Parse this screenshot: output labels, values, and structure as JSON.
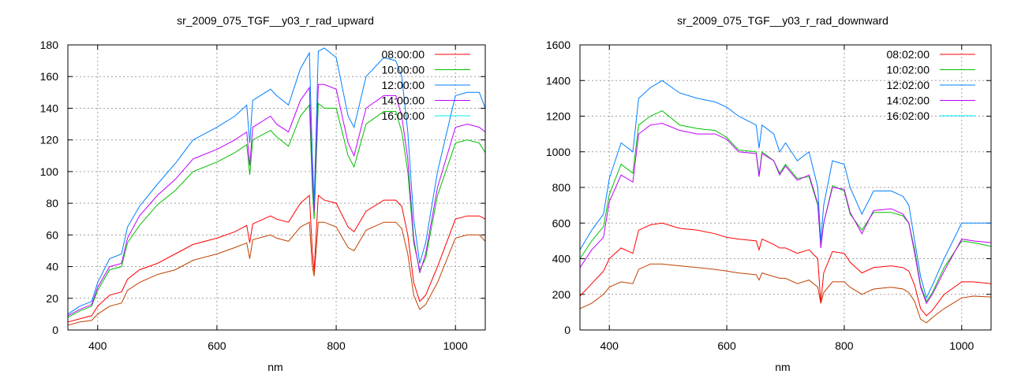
{
  "chart_data": [
    {
      "type": "line",
      "title": "sr_2009_075_TGF__y03_r_rad_upward",
      "xlabel": "nm",
      "ylabel": "",
      "xlim": [
        350,
        1050
      ],
      "ylim": [
        0,
        180
      ],
      "xticks": [
        400,
        600,
        800,
        1000
      ],
      "yticks": [
        0,
        20,
        40,
        60,
        80,
        100,
        120,
        140,
        160,
        180
      ],
      "grid": true,
      "legend_position": "top-right",
      "x": [
        350,
        370,
        390,
        400,
        420,
        440,
        450,
        470,
        500,
        530,
        560,
        600,
        630,
        650,
        655,
        660,
        690,
        700,
        720,
        740,
        755,
        760,
        763,
        770,
        780,
        800,
        820,
        830,
        850,
        880,
        900,
        910,
        920,
        930,
        940,
        950,
        970,
        1000,
        1020,
        1040,
        1050
      ],
      "series": [
        {
          "name": "08:00:00",
          "color": "#ff0000",
          "values": [
            5,
            7,
            9,
            15,
            22,
            24,
            32,
            38,
            42,
            48,
            54,
            58,
            62,
            66,
            55,
            67,
            72,
            70,
            68,
            80,
            85,
            50,
            37,
            85,
            82,
            80,
            65,
            62,
            75,
            82,
            82,
            78,
            60,
            30,
            18,
            22,
            40,
            70,
            72,
            72,
            70
          ]
        },
        {
          "name": "10:00:00",
          "color": "#00c000",
          "values": [
            8,
            12,
            15,
            25,
            38,
            40,
            55,
            66,
            79,
            88,
            100,
            106,
            112,
            117,
            98,
            120,
            126,
            122,
            116,
            135,
            142,
            90,
            70,
            143,
            140,
            140,
            110,
            103,
            130,
            138,
            138,
            125,
            100,
            55,
            38,
            45,
            85,
            118,
            120,
            118,
            112
          ]
        },
        {
          "name": "12:00:00",
          "color": "#0080ff",
          "values": [
            10,
            15,
            18,
            30,
            45,
            48,
            65,
            78,
            92,
            105,
            120,
            128,
            135,
            142,
            118,
            145,
            152,
            148,
            142,
            165,
            175,
            110,
            80,
            176,
            178,
            172,
            135,
            128,
            160,
            172,
            170,
            160,
            125,
            70,
            42,
            55,
            100,
            148,
            150,
            150,
            140
          ]
        },
        {
          "name": "14:00:00",
          "color": "#c000ff",
          "values": [
            9,
            13,
            16,
            27,
            40,
            42,
            58,
            72,
            85,
            95,
            108,
            114,
            120,
            125,
            104,
            128,
            135,
            130,
            125,
            145,
            153,
            98,
            75,
            155,
            155,
            152,
            118,
            110,
            140,
            148,
            148,
            135,
            108,
            58,
            36,
            48,
            90,
            128,
            130,
            128,
            125
          ]
        },
        {
          "name": "16:00:00",
          "color": "#00eeee",
          "plot_color": "#c04000",
          "values": [
            3,
            5,
            6,
            10,
            15,
            17,
            25,
            30,
            35,
            38,
            44,
            48,
            52,
            55,
            45,
            57,
            60,
            58,
            56,
            65,
            68,
            40,
            34,
            68,
            68,
            65,
            52,
            50,
            63,
            68,
            68,
            64,
            48,
            22,
            13,
            16,
            30,
            58,
            60,
            60,
            56
          ]
        }
      ]
    },
    {
      "type": "line",
      "title": "sr_2009_075_TGF__y03_r_rad_downward",
      "xlabel": "nm",
      "ylabel": "",
      "xlim": [
        350,
        1050
      ],
      "ylim": [
        0,
        1600
      ],
      "xticks": [
        400,
        600,
        800,
        1000
      ],
      "yticks": [
        0,
        200,
        400,
        600,
        800,
        1000,
        1200,
        1400,
        1600
      ],
      "grid": true,
      "legend_position": "top-right",
      "x": [
        350,
        370,
        390,
        400,
        420,
        440,
        450,
        470,
        490,
        520,
        550,
        580,
        600,
        620,
        650,
        655,
        660,
        680,
        690,
        700,
        720,
        740,
        755,
        760,
        765,
        780,
        800,
        810,
        830,
        850,
        880,
        900,
        910,
        920,
        930,
        940,
        950,
        970,
        1000,
        1020,
        1050
      ],
      "series": [
        {
          "name": "08:02:00",
          "color": "#ff0000",
          "values": [
            190,
            260,
            330,
            400,
            460,
            430,
            560,
            590,
            600,
            570,
            560,
            540,
            520,
            510,
            500,
            450,
            510,
            480,
            460,
            460,
            430,
            450,
            400,
            150,
            320,
            440,
            430,
            380,
            320,
            350,
            360,
            350,
            330,
            250,
            120,
            80,
            110,
            200,
            270,
            270,
            260
          ]
        },
        {
          "name": "10:02:00",
          "color": "#00c000",
          "values": [
            400,
            500,
            580,
            760,
            930,
            880,
            1150,
            1200,
            1230,
            1150,
            1130,
            1120,
            1080,
            1010,
            1000,
            870,
            1000,
            950,
            880,
            930,
            850,
            860,
            700,
            470,
            600,
            810,
            780,
            650,
            560,
            660,
            660,
            640,
            600,
            450,
            250,
            160,
            210,
            350,
            500,
            490,
            470
          ]
        },
        {
          "name": "12:02:00",
          "color": "#0080ff",
          "values": [
            450,
            560,
            650,
            850,
            1050,
            1000,
            1300,
            1360,
            1400,
            1330,
            1300,
            1280,
            1250,
            1200,
            1150,
            1020,
            1150,
            1100,
            1000,
            1050,
            950,
            1000,
            800,
            500,
            700,
            950,
            930,
            800,
            650,
            780,
            780,
            750,
            700,
            500,
            300,
            180,
            250,
            400,
            600,
            600,
            600
          ]
        },
        {
          "name": "14:02:00",
          "color": "#c000ff",
          "values": [
            350,
            450,
            520,
            720,
            870,
            830,
            1100,
            1150,
            1160,
            1120,
            1100,
            1100,
            1070,
            1000,
            990,
            860,
            990,
            950,
            870,
            920,
            840,
            870,
            710,
            460,
            600,
            800,
            790,
            660,
            540,
            670,
            680,
            650,
            600,
            430,
            240,
            150,
            200,
            330,
            510,
            500,
            490
          ]
        },
        {
          "name": "16:02:00",
          "color": "#00eeee",
          "plot_color": "#c04000",
          "values": [
            120,
            150,
            200,
            240,
            270,
            260,
            340,
            370,
            370,
            360,
            350,
            340,
            330,
            320,
            310,
            280,
            320,
            300,
            290,
            290,
            260,
            280,
            240,
            150,
            210,
            270,
            270,
            240,
            200,
            230,
            240,
            230,
            210,
            160,
            60,
            40,
            70,
            120,
            180,
            190,
            185
          ]
        }
      ]
    }
  ]
}
